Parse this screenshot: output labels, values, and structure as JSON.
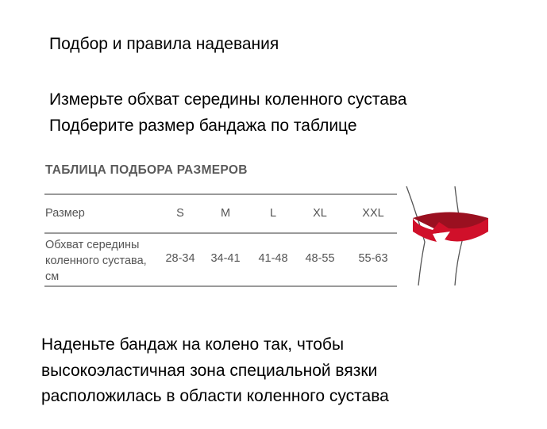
{
  "title": "Подбор и правила надевания",
  "instructions": [
    "Измерьте обхват середины коленного сустава",
    "Подберите размер бандажа по таблице"
  ],
  "table": {
    "title": "ТАБЛИЦА ПОДБОРА РАЗМЕРОВ",
    "header_label": "Размер",
    "sizes": [
      "S",
      "M",
      "L",
      "XL",
      "XXL"
    ],
    "row_label": "Обхват середины коленного сустава, см",
    "ranges": [
      "28-34",
      "34-41",
      "41-48",
      "48-55",
      "55-63"
    ]
  },
  "illustration": {
    "icon": "knee-measure-icon",
    "accent": "#d0102a"
  },
  "bottom_text": [
    "Наденьте бандаж на колено так, чтобы",
    "высокоэластичная зона специальной вязки",
    "расположилась в области коленного сустава"
  ]
}
